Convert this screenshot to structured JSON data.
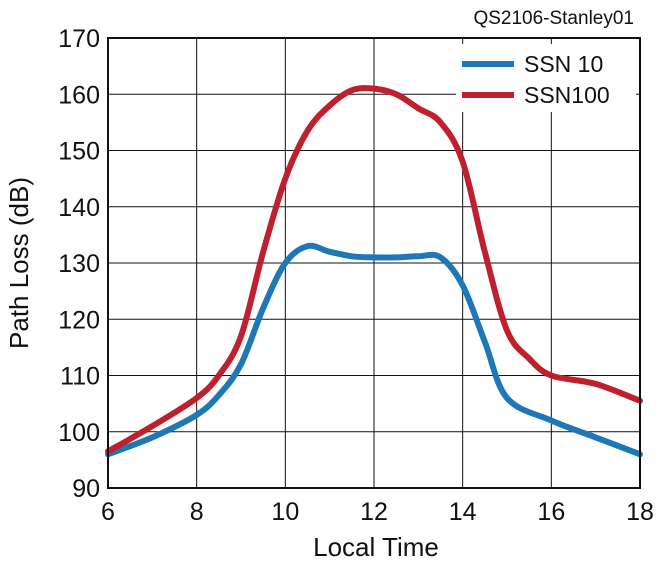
{
  "figure_id": "QS2106-Stanley01",
  "chart_data": {
    "type": "line",
    "xlabel": "Local Time",
    "ylabel": "Path Loss (dB)",
    "xlim": [
      6,
      18
    ],
    "ylim": [
      90,
      170
    ],
    "x_ticks": [
      6,
      8,
      10,
      12,
      14,
      16,
      18
    ],
    "y_ticks": [
      90,
      100,
      110,
      120,
      130,
      140,
      150,
      160,
      170
    ],
    "grid": true,
    "legend_position": "top-right",
    "series": [
      {
        "name": "SSN 10",
        "color": "#1e78b8",
        "x": [
          6,
          7,
          8,
          8.5,
          9,
          9.5,
          10,
          10.5,
          11,
          11.5,
          12,
          12.5,
          13,
          13.5,
          14,
          14.5,
          15,
          16,
          17,
          18
        ],
        "y": [
          96,
          99,
          103,
          106.5,
          112,
          122,
          130,
          133,
          132,
          131.2,
          131,
          131,
          131.2,
          131,
          126,
          116,
          106,
          102,
          99,
          96
        ]
      },
      {
        "name": "SSN100",
        "color": "#c0202e",
        "x": [
          6,
          7,
          8,
          8.5,
          9,
          9.5,
          10,
          10.5,
          11,
          11.5,
          12,
          12.5,
          13,
          13.5,
          14,
          14.5,
          15,
          15.5,
          16,
          17,
          18
        ],
        "y": [
          96.5,
          101,
          106,
          110,
          117,
          132,
          145,
          153.5,
          158,
          160.7,
          161,
          160,
          157.5,
          155,
          148,
          132,
          118,
          113,
          110,
          108.5,
          105.5
        ]
      }
    ]
  }
}
